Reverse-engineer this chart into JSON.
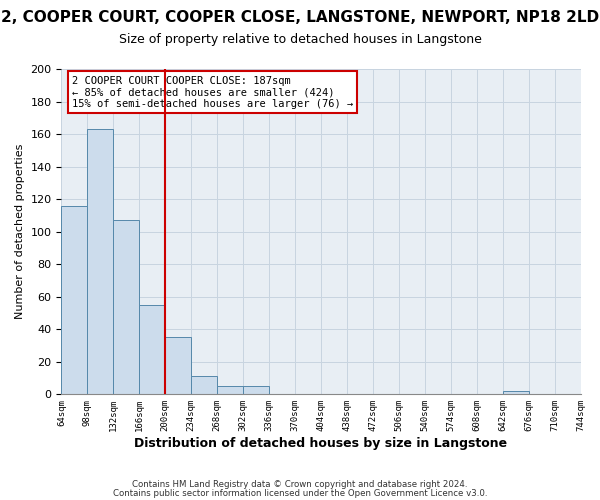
{
  "title": "2, COOPER COURT, COOPER CLOSE, LANGSTONE, NEWPORT, NP18 2LD",
  "subtitle": "Size of property relative to detached houses in Langstone",
  "xlabel": "Distribution of detached houses by size in Langstone",
  "ylabel": "Number of detached properties",
  "bar_values": [
    116,
    163,
    107,
    55,
    35,
    11,
    5,
    5,
    0,
    0,
    0,
    0,
    0,
    0,
    0,
    0,
    0,
    2,
    0,
    0
  ],
  "bin_labels": [
    "64sqm",
    "98sqm",
    "132sqm",
    "166sqm",
    "200sqm",
    "234sqm",
    "268sqm",
    "302sqm",
    "336sqm",
    "370sqm",
    "404sqm",
    "438sqm",
    "472sqm",
    "506sqm",
    "540sqm",
    "574sqm",
    "608sqm",
    "642sqm",
    "676sqm",
    "710sqm",
    "744sqm"
  ],
  "bar_color": "#ccdcec",
  "bar_edge_color": "#5588aa",
  "grid_color": "#c8d4e0",
  "vline_x": 4,
  "vline_color": "#cc0000",
  "annotation_text": "2 COOPER COURT COOPER CLOSE: 187sqm\n← 85% of detached houses are smaller (424)\n15% of semi-detached houses are larger (76) →",
  "annotation_box_color": "#ffffff",
  "annotation_box_edge_color": "#cc0000",
  "ylim": [
    0,
    200
  ],
  "yticks": [
    0,
    20,
    40,
    60,
    80,
    100,
    120,
    140,
    160,
    180,
    200
  ],
  "footnote1": "Contains HM Land Registry data © Crown copyright and database right 2024.",
  "footnote2": "Contains public sector information licensed under the Open Government Licence v3.0.",
  "background_color": "#ffffff",
  "plot_bg_color": "#e8eef4",
  "title_fontsize": 11,
  "subtitle_fontsize": 9,
  "num_bins": 20
}
